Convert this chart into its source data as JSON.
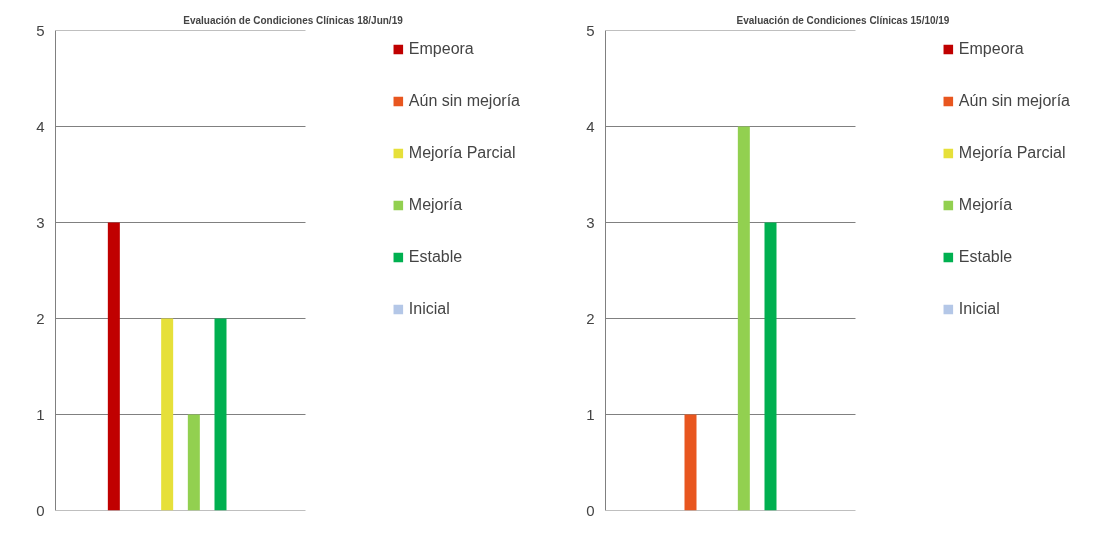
{
  "chart_data": [
    {
      "type": "bar",
      "title": "Evaluación de Condiciones Clínicas 18/Jun/19",
      "categories": [
        null
      ],
      "ylim": [
        0,
        5
      ],
      "yticks": [
        0,
        1,
        2,
        3,
        4,
        5
      ],
      "grid": "y",
      "legend": "right",
      "tick_labels": "y",
      "series": [
        {
          "name": "Empeora",
          "color": "#c00000",
          "values": [
            3
          ]
        },
        {
          "name": "Aún sin mejoría",
          "color": "#e8561f",
          "values": [
            0
          ]
        },
        {
          "name": "Mejoría Parcial",
          "color": "#e6e03a",
          "values": [
            2
          ]
        },
        {
          "name": "Mejoría",
          "color": "#92d050",
          "values": [
            1
          ]
        },
        {
          "name": "Estable",
          "color": "#00b050",
          "values": [
            2
          ]
        },
        {
          "name": "Inicial",
          "color": "#b4c7e7",
          "values": [
            0
          ]
        }
      ]
    },
    {
      "type": "bar",
      "title": "Evaluación de Condiciones Clínicas 15/10/19",
      "categories": [
        null
      ],
      "ylim": [
        0,
        5
      ],
      "yticks": [
        0,
        1,
        2,
        3,
        4,
        5
      ],
      "grid": "y",
      "legend": "right",
      "tick_labels": "y",
      "series": [
        {
          "name": "Empeora",
          "color": "#c00000",
          "values": [
            0
          ]
        },
        {
          "name": "Aún sin mejoría",
          "color": "#e8561f",
          "values": [
            1
          ]
        },
        {
          "name": "Mejoría Parcial",
          "color": "#e6e03a",
          "values": [
            0
          ]
        },
        {
          "name": "Mejoría",
          "color": "#92d050",
          "values": [
            4
          ]
        },
        {
          "name": "Estable",
          "color": "#00b050",
          "values": [
            3
          ]
        },
        {
          "name": "Inicial",
          "color": "#b4c7e7",
          "values": [
            0
          ]
        }
      ]
    }
  ]
}
